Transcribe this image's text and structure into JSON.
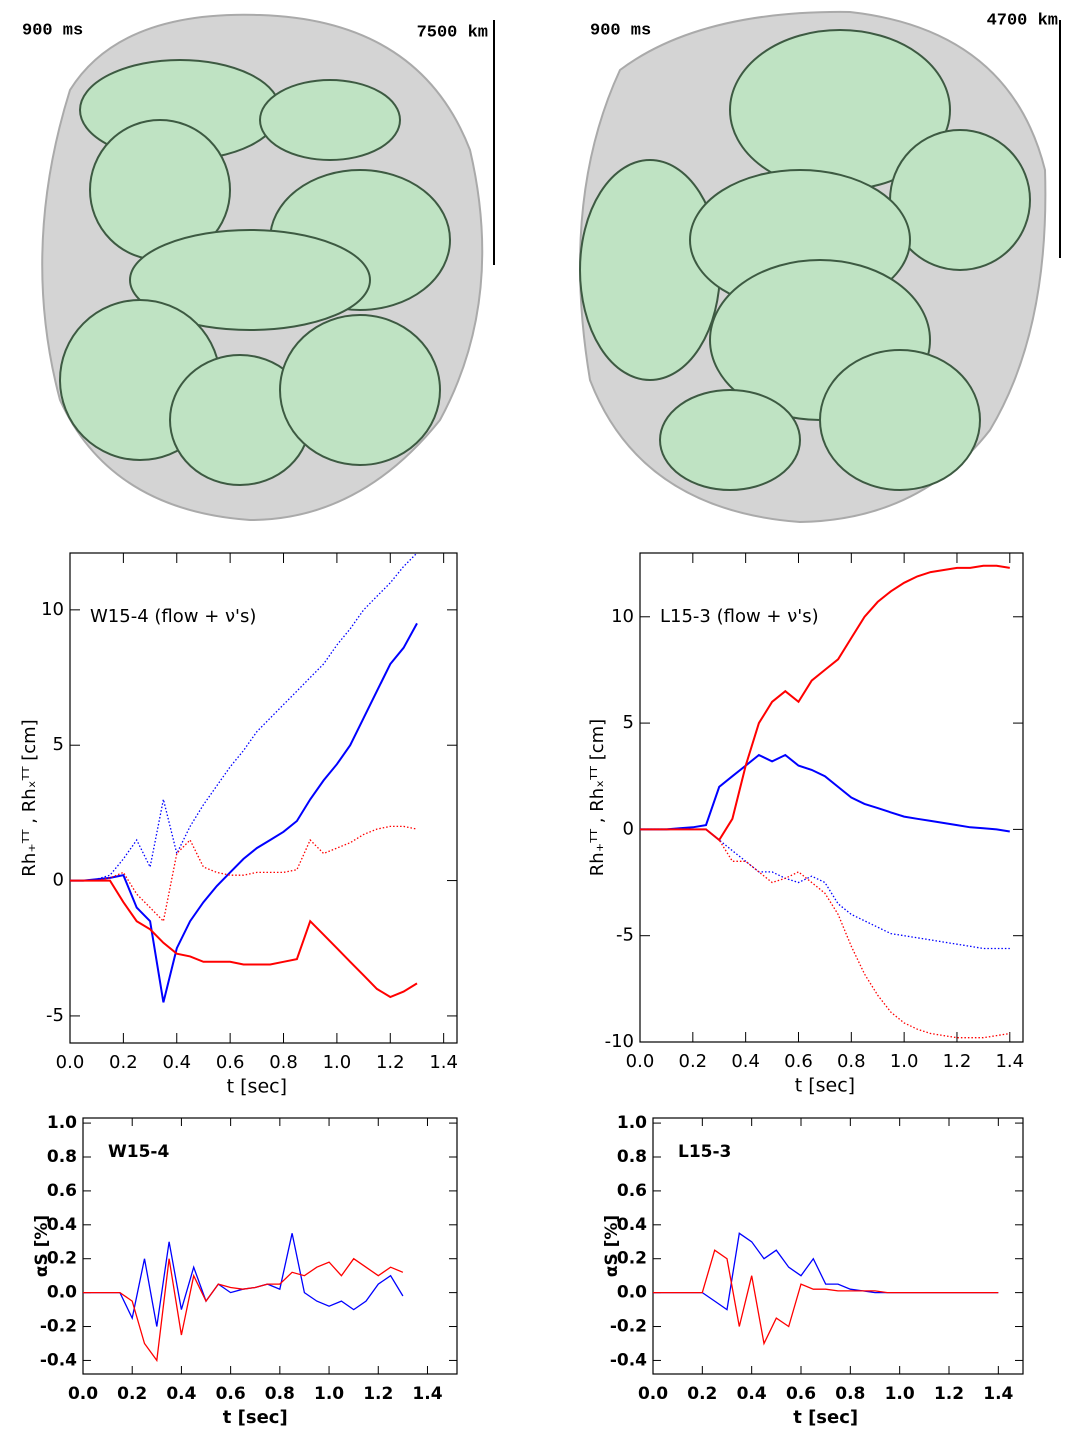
{
  "renderings": [
    {
      "time": "900 ms",
      "scale": "7500 km"
    },
    {
      "time": "900 ms",
      "scale": "4700 km"
    }
  ],
  "chart_data": [
    {
      "type": "line",
      "annotation": "W15-4 (flow + ν's)",
      "x_label": "t [sec]",
      "y_label": "Rh₊ᵀᵀ , Rhₓᵀᵀ [cm]",
      "x": [
        0,
        0.05,
        0.1,
        0.15,
        0.2,
        0.25,
        0.3,
        0.35,
        0.4,
        0.45,
        0.5,
        0.55,
        0.6,
        0.65,
        0.7,
        0.75,
        0.8,
        0.85,
        0.9,
        0.95,
        1.0,
        1.05,
        1.1,
        1.15,
        1.2,
        1.25,
        1.3
      ],
      "series": [
        {
          "color": "#0000ff",
          "style": "solid",
          "values": [
            0,
            0,
            0.05,
            0.1,
            0.2,
            -1.0,
            -1.5,
            -4.5,
            -2.5,
            -1.5,
            -0.8,
            -0.2,
            0.3,
            0.8,
            1.2,
            1.5,
            1.8,
            2.2,
            3.0,
            3.7,
            4.3,
            5.0,
            6.0,
            7.0,
            8.0,
            8.6,
            9.5
          ]
        },
        {
          "color": "#0000ff",
          "style": "dotted",
          "values": [
            0,
            0,
            0.05,
            0.2,
            0.8,
            1.5,
            0.5,
            3.0,
            1.0,
            2.0,
            2.8,
            3.5,
            4.2,
            4.8,
            5.5,
            6.0,
            6.5,
            7.0,
            7.5,
            8.0,
            8.7,
            9.3,
            10.0,
            10.5,
            11.0,
            11.6,
            12.1
          ]
        },
        {
          "color": "#ff0000",
          "style": "solid",
          "values": [
            0,
            0,
            0,
            0,
            -0.8,
            -1.5,
            -1.8,
            -2.3,
            -2.7,
            -2.8,
            -3.0,
            -3.0,
            -3.0,
            -3.1,
            -3.1,
            -3.1,
            -3.0,
            -2.9,
            -1.5,
            -2.0,
            -2.5,
            -3.0,
            -3.5,
            -4.0,
            -4.3,
            -4.1,
            -3.8
          ]
        },
        {
          "color": "#ff0000",
          "style": "dotted",
          "values": [
            0,
            0,
            0,
            0.1,
            0.3,
            -0.5,
            -1.0,
            -1.5,
            1.0,
            1.5,
            0.5,
            0.3,
            0.2,
            0.2,
            0.3,
            0.3,
            0.3,
            0.4,
            1.5,
            1.0,
            1.2,
            1.4,
            1.7,
            1.9,
            2.0,
            2.0,
            1.9
          ]
        }
      ],
      "xlim": [
        0,
        1.45
      ],
      "ylim": [
        -6,
        12.1
      ],
      "xticks": [
        {
          "value": 0,
          "label": "0.0"
        },
        0.2,
        0.4,
        0.6,
        0.8,
        {
          "value": 1,
          "label": "1.0"
        },
        1.2,
        1.4
      ],
      "yticks": [
        -5,
        0,
        5,
        10
      ]
    },
    {
      "type": "line",
      "annotation": "L15-3 (flow + ν's)",
      "x_label": "t [sec]",
      "y_label": "Rh₊ᵀᵀ , Rhₓᵀᵀ [cm]",
      "x": [
        0,
        0.05,
        0.1,
        0.15,
        0.2,
        0.25,
        0.3,
        0.35,
        0.4,
        0.45,
        0.5,
        0.55,
        0.6,
        0.65,
        0.7,
        0.75,
        0.8,
        0.85,
        0.9,
        0.95,
        1.0,
        1.05,
        1.1,
        1.15,
        1.2,
        1.25,
        1.3,
        1.35,
        1.4
      ],
      "series": [
        {
          "color": "#0000ff",
          "style": "solid",
          "values": [
            0,
            0,
            0,
            0.05,
            0.1,
            0.2,
            2.0,
            2.5,
            3.0,
            3.5,
            3.2,
            3.5,
            3.0,
            2.8,
            2.5,
            2.0,
            1.5,
            1.2,
            1.0,
            0.8,
            0.6,
            0.5,
            0.4,
            0.3,
            0.2,
            0.1,
            0.05,
            0,
            -0.1
          ]
        },
        {
          "color": "#ff0000",
          "style": "solid",
          "values": [
            0,
            0,
            0,
            0,
            0,
            0,
            -0.5,
            0.5,
            3.0,
            5.0,
            6.0,
            6.5,
            6.0,
            7.0,
            7.5,
            8.0,
            9.0,
            10.0,
            10.7,
            11.2,
            11.6,
            11.9,
            12.1,
            12.2,
            12.3,
            12.3,
            12.4,
            12.4,
            12.3
          ]
        },
        {
          "color": "#0000ff",
          "style": "dotted",
          "values": [
            0,
            0,
            0,
            0,
            0,
            0,
            -0.5,
            -1.0,
            -1.5,
            -2.0,
            -2.0,
            -2.3,
            -2.5,
            -2.2,
            -2.5,
            -3.5,
            -4.0,
            -4.3,
            -4.6,
            -4.9,
            -5.0,
            -5.1,
            -5.2,
            -5.3,
            -5.4,
            -5.5,
            -5.6,
            -5.6,
            -5.6
          ]
        },
        {
          "color": "#ff0000",
          "style": "dotted",
          "values": [
            0,
            0,
            0,
            0,
            0,
            0,
            -0.5,
            -1.5,
            -1.5,
            -2.0,
            -2.5,
            -2.3,
            -2.0,
            -2.5,
            -3.0,
            -4.0,
            -5.5,
            -6.8,
            -7.8,
            -8.6,
            -9.1,
            -9.4,
            -9.6,
            -9.7,
            -9.8,
            -9.8,
            -9.8,
            -9.7,
            -9.6
          ]
        }
      ],
      "xlim": [
        0,
        1.45
      ],
      "ylim": [
        -10,
        13
      ],
      "xticks": [
        {
          "value": 0,
          "label": "0.0"
        },
        0.2,
        0.4,
        0.6,
        0.8,
        {
          "value": 1,
          "label": "1.0"
        },
        1.2,
        1.4
      ],
      "yticks": [
        -10,
        -5,
        0,
        5,
        10
      ]
    },
    {
      "type": "line",
      "annotation": "W15-4",
      "x_label": "t [sec]",
      "y_label": "αS [%]",
      "x": [
        0,
        0.05,
        0.1,
        0.15,
        0.2,
        0.25,
        0.3,
        0.35,
        0.4,
        0.45,
        0.5,
        0.55,
        0.6,
        0.65,
        0.7,
        0.75,
        0.8,
        0.85,
        0.9,
        0.95,
        1.0,
        1.05,
        1.1,
        1.15,
        1.2,
        1.25,
        1.3
      ],
      "series": [
        {
          "color": "#0000ff",
          "style": "solid",
          "values": [
            0,
            0,
            0,
            0,
            -0.15,
            0.2,
            -0.2,
            0.3,
            -0.1,
            0.15,
            -0.05,
            0.05,
            0,
            0.02,
            0.03,
            0.05,
            0.02,
            0.35,
            0.0,
            -0.05,
            -0.08,
            -0.05,
            -0.1,
            -0.05,
            0.05,
            0.1,
            -0.02
          ]
        },
        {
          "color": "#ff0000",
          "style": "solid",
          "values": [
            0,
            0,
            0,
            0,
            -0.05,
            -0.3,
            -0.4,
            0.2,
            -0.25,
            0.1,
            -0.05,
            0.05,
            0.03,
            0.02,
            0.03,
            0.05,
            0.05,
            0.12,
            0.1,
            0.15,
            0.18,
            0.1,
            0.2,
            0.15,
            0.1,
            0.15,
            0.12
          ]
        }
      ],
      "xlim": [
        0,
        1.52
      ],
      "ylim": [
        -0.48,
        1.03
      ],
      "xticks": [
        {
          "value": 0,
          "label": "0.0"
        },
        0.2,
        0.4,
        0.6,
        0.8,
        {
          "value": 1,
          "label": "1.0"
        },
        1.2,
        1.4
      ],
      "yticks": [
        -0.4,
        -0.2,
        {
          "value": 0,
          "label": "0.0"
        },
        0.2,
        0.4,
        0.6,
        0.8,
        {
          "value": 1,
          "label": "1.0"
        }
      ]
    },
    {
      "type": "line",
      "annotation": "L15-3",
      "x_label": "t [sec]",
      "y_label": "αS [%]",
      "x": [
        0,
        0.05,
        0.1,
        0.15,
        0.2,
        0.25,
        0.3,
        0.35,
        0.4,
        0.45,
        0.5,
        0.55,
        0.6,
        0.65,
        0.7,
        0.75,
        0.8,
        0.85,
        0.9,
        0.95,
        1.0,
        1.05,
        1.1,
        1.15,
        1.2,
        1.25,
        1.3,
        1.35,
        1.4
      ],
      "series": [
        {
          "color": "#0000ff",
          "style": "solid",
          "values": [
            0,
            0,
            0,
            0,
            0,
            -0.05,
            -0.1,
            0.35,
            0.3,
            0.2,
            0.25,
            0.15,
            0.1,
            0.2,
            0.05,
            0.05,
            0.02,
            0.01,
            0,
            0,
            0,
            0,
            0,
            0,
            0,
            0,
            0,
            0,
            0
          ]
        },
        {
          "color": "#ff0000",
          "style": "solid",
          "values": [
            0,
            0,
            0,
            0,
            0,
            0.25,
            0.2,
            -0.2,
            0.1,
            -0.3,
            -0.15,
            -0.2,
            0.05,
            0.02,
            0.02,
            0.01,
            0.01,
            0.01,
            0.01,
            0,
            0,
            0,
            0,
            0,
            0,
            0,
            0,
            0,
            0
          ]
        }
      ],
      "xlim": [
        0,
        1.5
      ],
      "ylim": [
        -0.48,
        1.03
      ],
      "xticks": [
        {
          "value": 0,
          "label": "0.0"
        },
        0.2,
        0.4,
        0.6,
        0.8,
        {
          "value": 1,
          "label": "1.0"
        },
        1.2,
        1.4
      ],
      "yticks": [
        -0.4,
        -0.2,
        {
          "value": 0,
          "label": "0.0"
        },
        0.2,
        0.4,
        0.6,
        0.8,
        {
          "value": 1,
          "label": "1.0"
        }
      ]
    }
  ]
}
